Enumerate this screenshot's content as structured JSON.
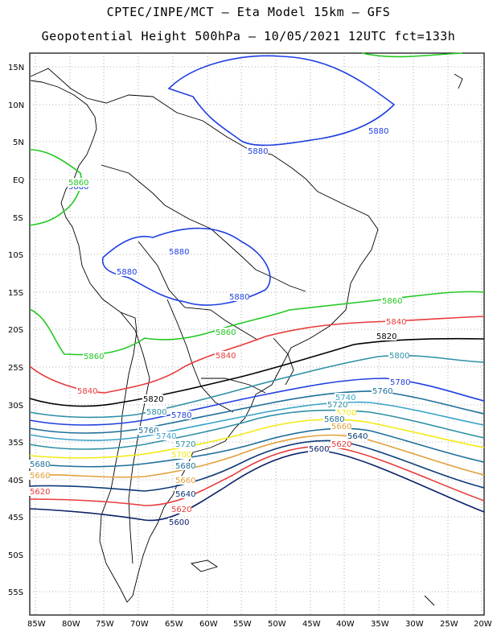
{
  "title_line1": "CPTEC/INPE/MCT –   Eta Model 15km – GFS",
  "title_line2": "Geopotential Height 500hPa – 10/05/2021 12UTC fct=133h",
  "lat_labels": [
    "15N",
    "10N",
    "5N",
    "EQ",
    "5S",
    "10S",
    "15S",
    "20S",
    "25S",
    "30S",
    "35S",
    "40S",
    "45S",
    "50S",
    "55S"
  ],
  "lon_labels": [
    "85W",
    "80W",
    "75W",
    "70W",
    "65W",
    "60W",
    "55W",
    "50W",
    "45W",
    "40W",
    "35W",
    "30W",
    "25W",
    "20W"
  ],
  "colors": {
    "c5880": "#1f3fe0",
    "c5860": "#22c822",
    "c5840": "#e83a3a",
    "c5820": "#000000",
    "c5800": "#2d8fa6",
    "c5780": "#1f3fe0",
    "c5760": "#1d6f9a",
    "c5740": "#3ba3c9",
    "c5720": "#2d8fa6",
    "c5700": "#f2ea12",
    "c5680": "#1d6f9a",
    "c5660": "#e0a03a",
    "c5640": "#0d3a78",
    "c5620": "#e83a3a",
    "c5600": "#0a1f66",
    "coast": "#000000"
  },
  "contours": [
    {
      "value": "5880",
      "labels": [
        "5880",
        "5880",
        "5880",
        "5880",
        "5880",
        "5880"
      ]
    },
    {
      "value": "5860",
      "labels": [
        "5860",
        "5860",
        "5860",
        "5860"
      ]
    },
    {
      "value": "5840",
      "labels": [
        "5840",
        "5840",
        "5840"
      ]
    },
    {
      "value": "5820",
      "labels": [
        "5820",
        "5820"
      ]
    },
    {
      "value": "5800",
      "labels": [
        "5800",
        "5800"
      ]
    },
    {
      "value": "5780",
      "labels": [
        "5780",
        "5780"
      ]
    },
    {
      "value": "5760",
      "labels": [
        "5760",
        "5760"
      ]
    },
    {
      "value": "5740",
      "labels": [
        "5740",
        "5740"
      ]
    },
    {
      "value": "5720",
      "labels": [
        "5720",
        "5720"
      ]
    },
    {
      "value": "5700",
      "labels": [
        "5700",
        "5700"
      ]
    },
    {
      "value": "5680",
      "labels": [
        "5680",
        "5680",
        "5680"
      ]
    },
    {
      "value": "5660",
      "labels": [
        "5660",
        "5660",
        "5660"
      ]
    },
    {
      "value": "5640",
      "labels": [
        "5640",
        "5640"
      ]
    },
    {
      "value": "5620",
      "labels": [
        "5620",
        "5620",
        "5620"
      ]
    },
    {
      "value": "5600",
      "labels": [
        "5600",
        "5600"
      ]
    }
  ]
}
